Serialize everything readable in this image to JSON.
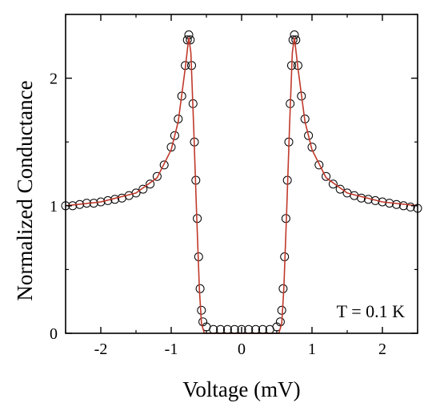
{
  "chart_data": {
    "type": "scatter",
    "title": "",
    "xlabel": "Voltage (mV)",
    "ylabel": "Normalized Conductance",
    "xlim": [
      -2.5,
      2.5
    ],
    "ylim": [
      0,
      2.5
    ],
    "x_ticks": [
      -2,
      -1,
      0,
      1,
      2
    ],
    "x_tick_labels": [
      "-2",
      "-1",
      "0",
      "1",
      "2"
    ],
    "y_ticks": [
      0,
      1,
      2
    ],
    "y_tick_labels": [
      "0",
      "1",
      "2"
    ],
    "grid": false,
    "legend": "none",
    "annotation": "T = 0.1 K",
    "colors": {
      "data": "#000000",
      "fit": "#c0392b"
    },
    "series": [
      {
        "kind": "scatter",
        "marker": "open-circle",
        "points": [
          [
            -2.5,
            1.0
          ],
          [
            -2.4,
            1.0
          ],
          [
            -2.3,
            1.01
          ],
          [
            -2.2,
            1.02
          ],
          [
            -2.1,
            1.02
          ],
          [
            -2.0,
            1.03
          ],
          [
            -1.9,
            1.04
          ],
          [
            -1.8,
            1.05
          ],
          [
            -1.7,
            1.06
          ],
          [
            -1.6,
            1.08
          ],
          [
            -1.5,
            1.1
          ],
          [
            -1.4,
            1.13
          ],
          [
            -1.3,
            1.17
          ],
          [
            -1.2,
            1.23
          ],
          [
            -1.1,
            1.32
          ],
          [
            -1.0,
            1.46
          ],
          [
            -0.95,
            1.55
          ],
          [
            -0.9,
            1.68
          ],
          [
            -0.85,
            1.86
          ],
          [
            -0.8,
            2.1
          ],
          [
            -0.77,
            2.3
          ],
          [
            -0.75,
            2.34
          ],
          [
            -0.73,
            2.3
          ],
          [
            -0.71,
            2.1
          ],
          [
            -0.69,
            1.8
          ],
          [
            -0.67,
            1.5
          ],
          [
            -0.65,
            1.2
          ],
          [
            -0.63,
            0.9
          ],
          [
            -0.61,
            0.6
          ],
          [
            -0.59,
            0.35
          ],
          [
            -0.57,
            0.18
          ],
          [
            -0.55,
            0.09
          ],
          [
            -0.5,
            0.05
          ],
          [
            -0.4,
            0.03
          ],
          [
            -0.3,
            0.03
          ],
          [
            -0.2,
            0.03
          ],
          [
            -0.1,
            0.03
          ],
          [
            0.0,
            0.03
          ],
          [
            0.1,
            0.03
          ],
          [
            0.2,
            0.03
          ],
          [
            0.3,
            0.03
          ],
          [
            0.4,
            0.03
          ],
          [
            0.5,
            0.05
          ],
          [
            0.55,
            0.09
          ],
          [
            0.57,
            0.18
          ],
          [
            0.59,
            0.35
          ],
          [
            0.61,
            0.6
          ],
          [
            0.63,
            0.9
          ],
          [
            0.65,
            1.2
          ],
          [
            0.67,
            1.5
          ],
          [
            0.69,
            1.8
          ],
          [
            0.71,
            2.1
          ],
          [
            0.73,
            2.3
          ],
          [
            0.75,
            2.34
          ],
          [
            0.77,
            2.3
          ],
          [
            0.8,
            2.1
          ],
          [
            0.85,
            1.86
          ],
          [
            0.9,
            1.68
          ],
          [
            0.95,
            1.55
          ],
          [
            1.0,
            1.46
          ],
          [
            1.1,
            1.32
          ],
          [
            1.2,
            1.23
          ],
          [
            1.3,
            1.17
          ],
          [
            1.4,
            1.13
          ],
          [
            1.5,
            1.1
          ],
          [
            1.6,
            1.08
          ],
          [
            1.7,
            1.06
          ],
          [
            1.8,
            1.05
          ],
          [
            1.9,
            1.04
          ],
          [
            2.0,
            1.03
          ],
          [
            2.1,
            1.02
          ],
          [
            2.2,
            1.01
          ],
          [
            2.3,
            1.0
          ],
          [
            2.4,
            0.99
          ],
          [
            2.5,
            0.98
          ]
        ]
      },
      {
        "kind": "line",
        "points": [
          [
            -2.5,
            1.0
          ],
          [
            -2.0,
            1.03
          ],
          [
            -1.5,
            1.1
          ],
          [
            -1.2,
            1.22
          ],
          [
            -1.0,
            1.44
          ],
          [
            -0.9,
            1.66
          ],
          [
            -0.8,
            2.08
          ],
          [
            -0.75,
            2.32
          ],
          [
            -0.72,
            2.2
          ],
          [
            -0.68,
            1.6
          ],
          [
            -0.64,
            0.95
          ],
          [
            -0.6,
            0.35
          ],
          [
            -0.57,
            0.08
          ],
          [
            -0.53,
            0.0
          ],
          [
            -0.5,
            0.0
          ],
          [
            0.5,
            0.0
          ],
          [
            0.53,
            0.0
          ],
          [
            0.57,
            0.08
          ],
          [
            0.6,
            0.35
          ],
          [
            0.64,
            0.95
          ],
          [
            0.68,
            1.6
          ],
          [
            0.72,
            2.2
          ],
          [
            0.75,
            2.32
          ],
          [
            0.8,
            2.08
          ],
          [
            0.9,
            1.66
          ],
          [
            1.0,
            1.44
          ],
          [
            1.2,
            1.22
          ],
          [
            1.5,
            1.1
          ],
          [
            2.0,
            1.03
          ],
          [
            2.5,
            1.0
          ]
        ]
      }
    ]
  }
}
